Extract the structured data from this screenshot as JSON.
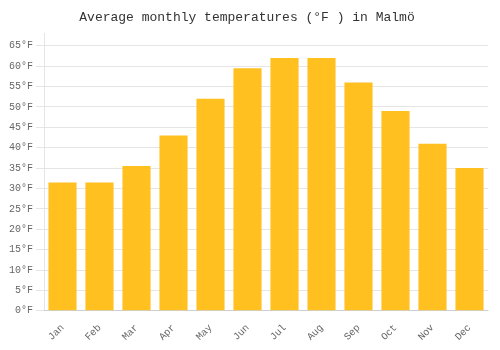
{
  "chart_data": {
    "type": "bar",
    "title": "Average monthly temperatures (°F ) in Malmö",
    "categories": [
      "Jan",
      "Feb",
      "Mar",
      "Apr",
      "May",
      "Jun",
      "Jul",
      "Aug",
      "Sep",
      "Oct",
      "Nov",
      "Dec"
    ],
    "values": [
      31.5,
      31.5,
      35.5,
      43.0,
      52.0,
      59.5,
      62.0,
      62.0,
      56.0,
      49.0,
      41.0,
      35.0
    ],
    "color": "#FFC020",
    "ylim": [
      0,
      68
    ],
    "yticks": [
      {
        "value": 0,
        "label": "0°F"
      },
      {
        "value": 5,
        "label": "5°F"
      },
      {
        "value": 10,
        "label": "10°F"
      },
      {
        "value": 15,
        "label": "15°F"
      },
      {
        "value": 20,
        "label": "20°F"
      },
      {
        "value": 25,
        "label": "25°F"
      },
      {
        "value": 30,
        "label": "30°F"
      },
      {
        "value": 35,
        "label": "35°F"
      },
      {
        "value": 40,
        "label": "40°F"
      },
      {
        "value": 45,
        "label": "45°F"
      },
      {
        "value": 50,
        "label": "50°F"
      },
      {
        "value": 55,
        "label": "55°F"
      },
      {
        "value": 60,
        "label": "60°F"
      },
      {
        "value": 65,
        "label": "65°F"
      }
    ],
    "grid": true
  }
}
